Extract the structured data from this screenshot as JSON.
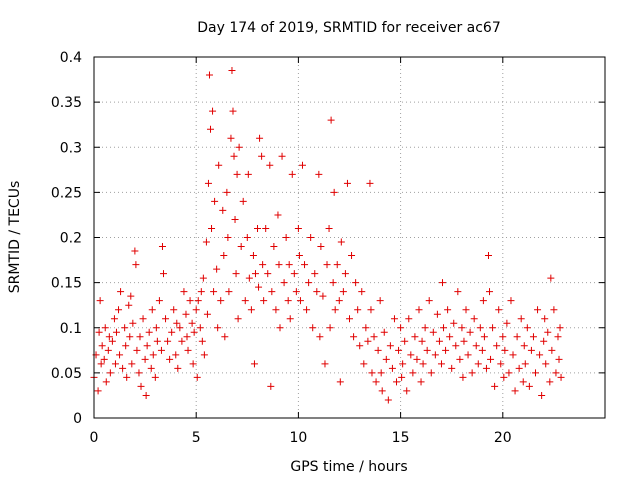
{
  "chart_data": {
    "type": "scatter",
    "title": "Day 174 of 2019, SRMTID for receiver ac67",
    "xlabel": "GPS time / hours",
    "ylabel": "SRMTID / TECUs",
    "xlim": [
      0,
      25
    ],
    "ylim": [
      0,
      0.4
    ],
    "x_ticks": [
      0,
      5,
      10,
      15,
      20
    ],
    "x_tick_labels": [
      "0",
      "5",
      "10",
      "15",
      "20"
    ],
    "y_ticks": [
      0,
      0.05,
      0.1,
      0.15,
      0.2,
      0.25,
      0.3,
      0.35,
      0.4
    ],
    "y_tick_labels": [
      "0",
      "0.05",
      "0.1",
      "0.15",
      "0.2",
      "0.25",
      "0.3",
      "0.35",
      "0.4"
    ],
    "grid": true,
    "marker": "+",
    "series": [
      {
        "name": "SRMTID",
        "color": "#e00000",
        "points": [
          [
            0.0,
            0.045
          ],
          [
            0.1,
            0.07
          ],
          [
            0.2,
            0.03
          ],
          [
            0.25,
            0.095
          ],
          [
            0.3,
            0.13
          ],
          [
            0.35,
            0.06
          ],
          [
            0.4,
            0.08
          ],
          [
            0.5,
            0.065
          ],
          [
            0.55,
            0.1
          ],
          [
            0.6,
            0.04
          ],
          [
            0.7,
            0.075
          ],
          [
            0.75,
            0.09
          ],
          [
            0.8,
            0.05
          ],
          [
            0.9,
            0.085
          ],
          [
            1.0,
            0.11
          ],
          [
            1.05,
            0.06
          ],
          [
            1.1,
            0.095
          ],
          [
            1.2,
            0.12
          ],
          [
            1.25,
            0.07
          ],
          [
            1.3,
            0.14
          ],
          [
            1.4,
            0.055
          ],
          [
            1.5,
            0.1
          ],
          [
            1.55,
            0.08
          ],
          [
            1.6,
            0.045
          ],
          [
            1.7,
            0.125
          ],
          [
            1.75,
            0.09
          ],
          [
            1.8,
            0.135
          ],
          [
            1.85,
            0.06
          ],
          [
            1.9,
            0.105
          ],
          [
            2.0,
            0.185
          ],
          [
            2.05,
            0.17
          ],
          [
            2.1,
            0.075
          ],
          [
            2.2,
            0.05
          ],
          [
            2.25,
            0.09
          ],
          [
            2.3,
            0.035
          ],
          [
            2.4,
            0.11
          ],
          [
            2.5,
            0.065
          ],
          [
            2.55,
            0.025
          ],
          [
            2.6,
            0.08
          ],
          [
            2.7,
            0.095
          ],
          [
            2.8,
            0.055
          ],
          [
            2.85,
            0.12
          ],
          [
            2.9,
            0.07
          ],
          [
            3.0,
            0.045
          ],
          [
            3.05,
            0.1
          ],
          [
            3.1,
            0.085
          ],
          [
            3.2,
            0.13
          ],
          [
            3.3,
            0.075
          ],
          [
            3.35,
            0.19
          ],
          [
            3.4,
            0.16
          ],
          [
            3.5,
            0.11
          ],
          [
            3.6,
            0.085
          ],
          [
            3.7,
            0.065
          ],
          [
            3.8,
            0.095
          ],
          [
            3.9,
            0.12
          ],
          [
            4.0,
            0.07
          ],
          [
            4.05,
            0.105
          ],
          [
            4.1,
            0.055
          ],
          [
            4.2,
            0.1
          ],
          [
            4.3,
            0.085
          ],
          [
            4.4,
            0.14
          ],
          [
            4.5,
            0.115
          ],
          [
            4.55,
            0.09
          ],
          [
            4.6,
            0.075
          ],
          [
            4.7,
            0.13
          ],
          [
            4.8,
            0.105
          ],
          [
            4.85,
            0.06
          ],
          [
            4.9,
            0.095
          ],
          [
            5.0,
            0.12
          ],
          [
            5.05,
            0.045
          ],
          [
            5.1,
            0.13
          ],
          [
            5.2,
            0.1
          ],
          [
            5.25,
            0.14
          ],
          [
            5.3,
            0.085
          ],
          [
            5.35,
            0.155
          ],
          [
            5.4,
            0.07
          ],
          [
            5.5,
            0.195
          ],
          [
            5.55,
            0.115
          ],
          [
            5.6,
            0.26
          ],
          [
            5.65,
            0.38
          ],
          [
            5.7,
            0.32
          ],
          [
            5.75,
            0.21
          ],
          [
            5.8,
            0.34
          ],
          [
            5.85,
            0.14
          ],
          [
            5.9,
            0.24
          ],
          [
            6.0,
            0.165
          ],
          [
            6.05,
            0.1
          ],
          [
            6.1,
            0.28
          ],
          [
            6.2,
            0.13
          ],
          [
            6.3,
            0.23
          ],
          [
            6.35,
            0.18
          ],
          [
            6.4,
            0.09
          ],
          [
            6.5,
            0.25
          ],
          [
            6.55,
            0.2
          ],
          [
            6.6,
            0.14
          ],
          [
            6.7,
            0.31
          ],
          [
            6.75,
            0.385
          ],
          [
            6.8,
            0.34
          ],
          [
            6.85,
            0.29
          ],
          [
            6.9,
            0.22
          ],
          [
            6.95,
            0.16
          ],
          [
            7.0,
            0.27
          ],
          [
            7.05,
            0.11
          ],
          [
            7.1,
            0.3
          ],
          [
            7.2,
            0.19
          ],
          [
            7.3,
            0.24
          ],
          [
            7.4,
            0.13
          ],
          [
            7.5,
            0.2
          ],
          [
            7.55,
            0.27
          ],
          [
            7.6,
            0.155
          ],
          [
            7.7,
            0.12
          ],
          [
            7.8,
            0.18
          ],
          [
            7.85,
            0.06
          ],
          [
            7.9,
            0.16
          ],
          [
            8.0,
            0.21
          ],
          [
            8.05,
            0.145
          ],
          [
            8.1,
            0.31
          ],
          [
            8.2,
            0.29
          ],
          [
            8.25,
            0.17
          ],
          [
            8.3,
            0.13
          ],
          [
            8.4,
            0.21
          ],
          [
            8.5,
            0.16
          ],
          [
            8.6,
            0.28
          ],
          [
            8.65,
            0.035
          ],
          [
            8.7,
            0.14
          ],
          [
            8.8,
            0.19
          ],
          [
            8.9,
            0.12
          ],
          [
            9.0,
            0.225
          ],
          [
            9.05,
            0.17
          ],
          [
            9.1,
            0.1
          ],
          [
            9.2,
            0.29
          ],
          [
            9.3,
            0.15
          ],
          [
            9.4,
            0.2
          ],
          [
            9.5,
            0.13
          ],
          [
            9.55,
            0.17
          ],
          [
            9.6,
            0.11
          ],
          [
            9.7,
            0.27
          ],
          [
            9.8,
            0.16
          ],
          [
            9.9,
            0.14
          ],
          [
            10.0,
            0.21
          ],
          [
            10.05,
            0.18
          ],
          [
            10.1,
            0.13
          ],
          [
            10.2,
            0.28
          ],
          [
            10.3,
            0.17
          ],
          [
            10.4,
            0.12
          ],
          [
            10.5,
            0.15
          ],
          [
            10.6,
            0.2
          ],
          [
            10.7,
            0.1
          ],
          [
            10.8,
            0.16
          ],
          [
            10.9,
            0.14
          ],
          [
            11.0,
            0.27
          ],
          [
            11.05,
            0.09
          ],
          [
            11.1,
            0.19
          ],
          [
            11.2,
            0.135
          ],
          [
            11.3,
            0.06
          ],
          [
            11.4,
            0.17
          ],
          [
            11.5,
            0.21
          ],
          [
            11.55,
            0.1
          ],
          [
            11.6,
            0.33
          ],
          [
            11.7,
            0.15
          ],
          [
            11.75,
            0.25
          ],
          [
            11.8,
            0.12
          ],
          [
            11.9,
            0.17
          ],
          [
            12.0,
            0.13
          ],
          [
            12.05,
            0.04
          ],
          [
            12.1,
            0.195
          ],
          [
            12.2,
            0.14
          ],
          [
            12.3,
            0.16
          ],
          [
            12.4,
            0.26
          ],
          [
            12.5,
            0.11
          ],
          [
            12.6,
            0.18
          ],
          [
            12.7,
            0.09
          ],
          [
            12.8,
            0.15
          ],
          [
            12.9,
            0.12
          ],
          [
            13.0,
            0.08
          ],
          [
            13.1,
            0.14
          ],
          [
            13.2,
            0.06
          ],
          [
            13.3,
            0.1
          ],
          [
            13.4,
            0.085
          ],
          [
            13.5,
            0.26
          ],
          [
            13.55,
            0.12
          ],
          [
            13.6,
            0.05
          ],
          [
            13.7,
            0.09
          ],
          [
            13.8,
            0.04
          ],
          [
            13.9,
            0.075
          ],
          [
            14.0,
            0.13
          ],
          [
            14.05,
            0.05
          ],
          [
            14.1,
            0.03
          ],
          [
            14.2,
            0.095
          ],
          [
            14.3,
            0.065
          ],
          [
            14.4,
            0.02
          ],
          [
            14.5,
            0.08
          ],
          [
            14.6,
            0.055
          ],
          [
            14.7,
            0.11
          ],
          [
            14.8,
            0.04
          ],
          [
            14.9,
            0.075
          ],
          [
            15.0,
            0.1
          ],
          [
            15.05,
            0.045
          ],
          [
            15.1,
            0.06
          ],
          [
            15.2,
            0.085
          ],
          [
            15.3,
            0.03
          ],
          [
            15.4,
            0.11
          ],
          [
            15.5,
            0.07
          ],
          [
            15.6,
            0.05
          ],
          [
            15.7,
            0.09
          ],
          [
            15.8,
            0.065
          ],
          [
            15.9,
            0.12
          ],
          [
            16.0,
            0.04
          ],
          [
            16.05,
            0.085
          ],
          [
            16.1,
            0.06
          ],
          [
            16.2,
            0.1
          ],
          [
            16.3,
            0.075
          ],
          [
            16.4,
            0.13
          ],
          [
            16.5,
            0.05
          ],
          [
            16.6,
            0.095
          ],
          [
            16.7,
            0.07
          ],
          [
            16.8,
            0.115
          ],
          [
            16.9,
            0.085
          ],
          [
            17.0,
            0.06
          ],
          [
            17.05,
            0.15
          ],
          [
            17.1,
            0.1
          ],
          [
            17.2,
            0.075
          ],
          [
            17.3,
            0.12
          ],
          [
            17.4,
            0.09
          ],
          [
            17.5,
            0.055
          ],
          [
            17.6,
            0.105
          ],
          [
            17.7,
            0.08
          ],
          [
            17.8,
            0.14
          ],
          [
            17.9,
            0.065
          ],
          [
            18.0,
            0.1
          ],
          [
            18.05,
            0.045
          ],
          [
            18.1,
            0.085
          ],
          [
            18.2,
            0.12
          ],
          [
            18.3,
            0.07
          ],
          [
            18.4,
            0.095
          ],
          [
            18.5,
            0.05
          ],
          [
            18.6,
            0.11
          ],
          [
            18.7,
            0.08
          ],
          [
            18.8,
            0.06
          ],
          [
            18.9,
            0.1
          ],
          [
            19.0,
            0.075
          ],
          [
            19.05,
            0.13
          ],
          [
            19.1,
            0.09
          ],
          [
            19.2,
            0.055
          ],
          [
            19.3,
            0.18
          ],
          [
            19.35,
            0.14
          ],
          [
            19.4,
            0.065
          ],
          [
            19.5,
            0.1
          ],
          [
            19.6,
            0.035
          ],
          [
            19.7,
            0.08
          ],
          [
            19.8,
            0.12
          ],
          [
            19.9,
            0.06
          ],
          [
            20.0,
            0.09
          ],
          [
            20.05,
            0.045
          ],
          [
            20.1,
            0.075
          ],
          [
            20.2,
            0.105
          ],
          [
            20.3,
            0.05
          ],
          [
            20.4,
            0.13
          ],
          [
            20.5,
            0.07
          ],
          [
            20.6,
            0.03
          ],
          [
            20.7,
            0.09
          ],
          [
            20.8,
            0.055
          ],
          [
            20.9,
            0.11
          ],
          [
            21.0,
            0.04
          ],
          [
            21.05,
            0.08
          ],
          [
            21.1,
            0.06
          ],
          [
            21.2,
            0.1
          ],
          [
            21.3,
            0.035
          ],
          [
            21.4,
            0.075
          ],
          [
            21.5,
            0.09
          ],
          [
            21.6,
            0.05
          ],
          [
            21.7,
            0.12
          ],
          [
            21.8,
            0.07
          ],
          [
            21.9,
            0.025
          ],
          [
            22.0,
            0.085
          ],
          [
            22.05,
            0.11
          ],
          [
            22.1,
            0.06
          ],
          [
            22.2,
            0.095
          ],
          [
            22.3,
            0.04
          ],
          [
            22.35,
            0.155
          ],
          [
            22.4,
            0.075
          ],
          [
            22.5,
            0.12
          ],
          [
            22.6,
            0.05
          ],
          [
            22.7,
            0.09
          ],
          [
            22.75,
            0.065
          ],
          [
            22.8,
            0.1
          ],
          [
            22.85,
            0.045
          ]
        ]
      }
    ]
  }
}
